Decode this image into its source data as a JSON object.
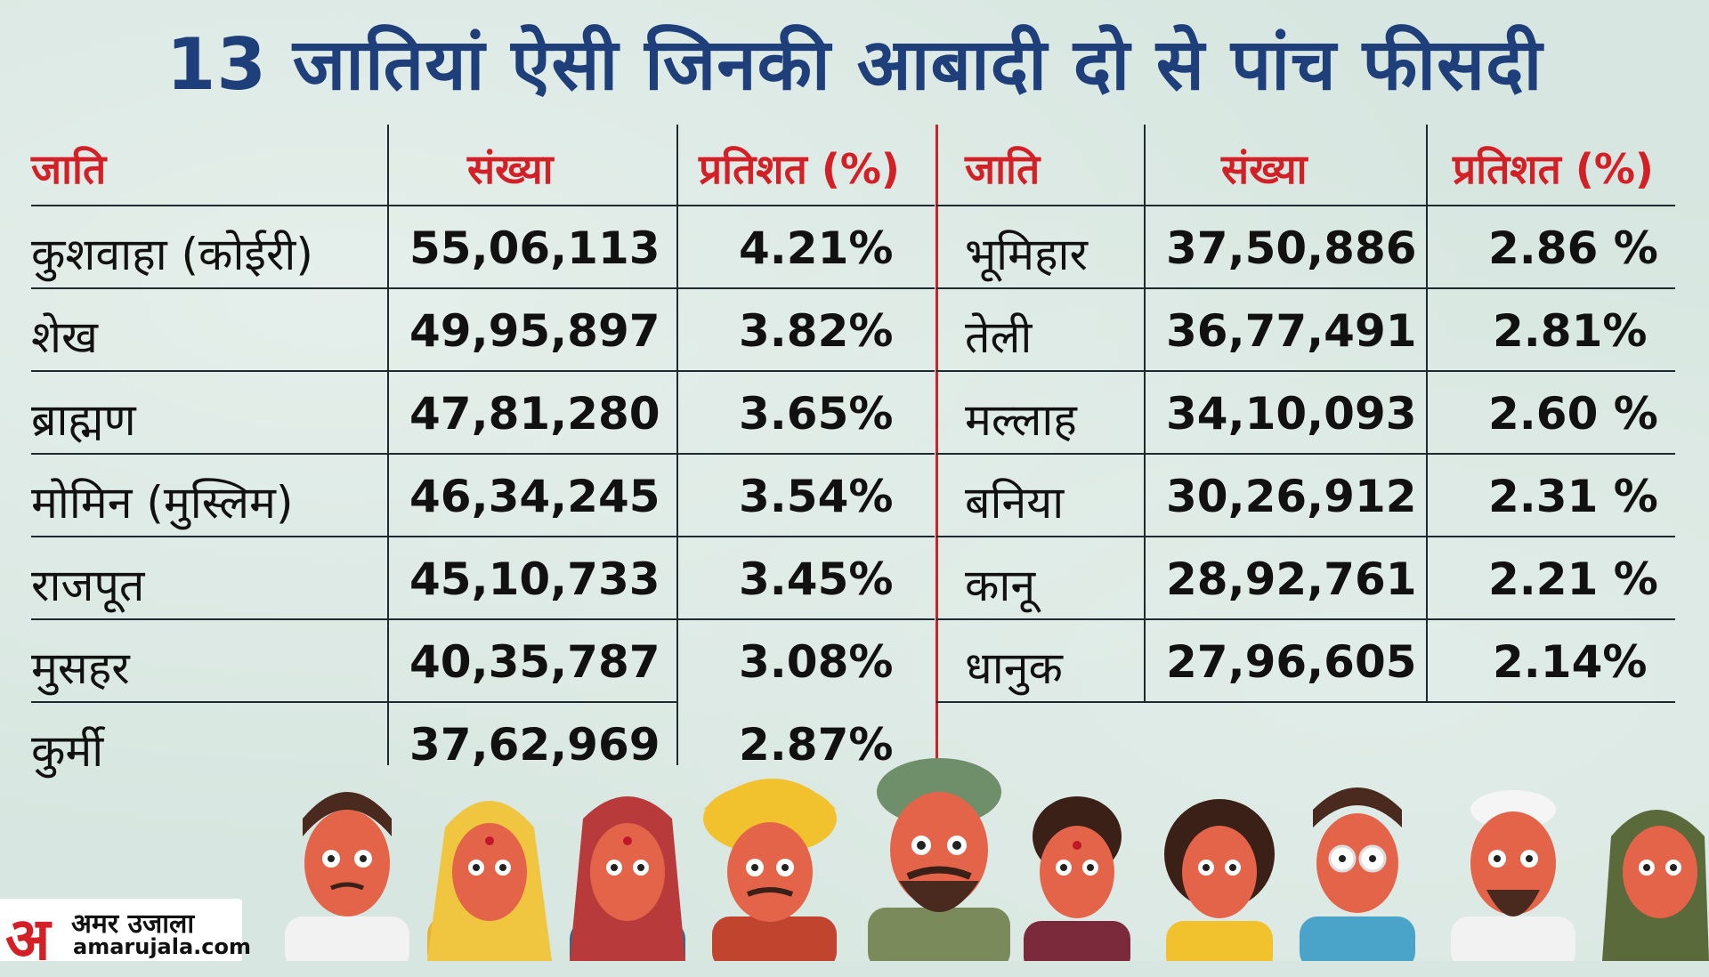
{
  "title": "13 जातियां ऐसी जिनकी आबादी दो से पांच फीसदी",
  "headers": {
    "caste": "जाति",
    "count": "संख्या",
    "percent": "प्रतिशत (%)"
  },
  "left_rows": [
    {
      "caste": "कुशवाहा (कोईरी)",
      "count": "55,06,113",
      "percent": "4.21%"
    },
    {
      "caste": "शेख",
      "count": "49,95,897",
      "percent": "3.82%"
    },
    {
      "caste": "ब्राह्मण",
      "count": "47,81,280",
      "percent": "3.65%"
    },
    {
      "caste": "मोमिन (मुस्लिम)",
      "count": "46,34,245",
      "percent": "3.54%"
    },
    {
      "caste": "राजपूत",
      "count": "45,10,733",
      "percent": "3.45%"
    },
    {
      "caste": "मुसहर",
      "count": "40,35,787",
      "percent": "3.08%"
    },
    {
      "caste": "कुर्मी",
      "count": "37,62,969",
      "percent": "2.87%"
    }
  ],
  "right_rows": [
    {
      "caste": "भूमिहार",
      "count": "37,50,886",
      "percent": "2.86 %"
    },
    {
      "caste": "तेली",
      "count": "36,77,491",
      "percent": "2.81%"
    },
    {
      "caste": "मल्लाह",
      "count": "34,10,093",
      "percent": "2.60 %"
    },
    {
      "caste": "बनिया",
      "count": "30,26,912",
      "percent": "2.31 %"
    },
    {
      "caste": "कानू",
      "count": "28,92,761",
      "percent": "2.21 %"
    },
    {
      "caste": "धानुक",
      "count": "27,96,605",
      "percent": "2.14%"
    }
  ],
  "logo": {
    "mark": "अ",
    "name": "अमर उजाला",
    "url": "amarujala.com"
  },
  "colors": {
    "title": "#1f3f7a",
    "header": "#d32027",
    "background": "#d7e6e0",
    "divider": "#d32027"
  }
}
